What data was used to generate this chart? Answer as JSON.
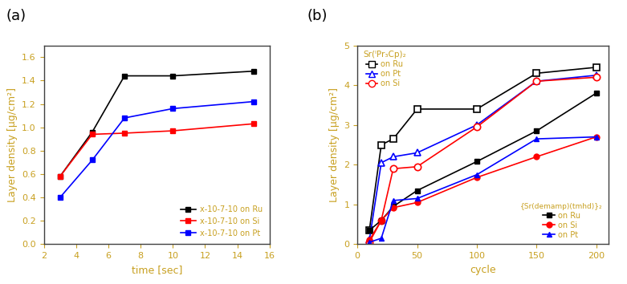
{
  "panel_a": {
    "title": "(a)",
    "xlabel": "time [sec]",
    "ylabel": "Layer density [μg/cm²]",
    "xlim": [
      2,
      16
    ],
    "ylim": [
      0.0,
      1.7
    ],
    "xticks": [
      2,
      4,
      6,
      8,
      10,
      12,
      14,
      16
    ],
    "yticks": [
      0.0,
      0.2,
      0.4,
      0.6,
      0.8,
      1.0,
      1.2,
      1.4,
      1.6
    ],
    "series": [
      {
        "label": "x-10-7-10 on Ru",
        "color": "#000000",
        "x": [
          3,
          5,
          7,
          10,
          15
        ],
        "y": [
          0.58,
          0.96,
          1.44,
          1.44,
          1.48
        ],
        "marker": "s",
        "filled": true
      },
      {
        "label": "x-10-7-10 on Si",
        "color": "#ff0000",
        "x": [
          3,
          5,
          7,
          10,
          15
        ],
        "y": [
          0.58,
          0.94,
          0.95,
          0.97,
          1.03
        ],
        "marker": "s",
        "filled": true
      },
      {
        "label": "x-10-7-10 on Pt",
        "color": "#0000ff",
        "x": [
          3,
          5,
          7,
          10,
          15
        ],
        "y": [
          0.4,
          0.72,
          1.08,
          1.16,
          1.22
        ],
        "marker": "s",
        "filled": true
      }
    ]
  },
  "panel_b": {
    "title": "(b)",
    "xlabel": "cycle",
    "ylabel": "Layer density [μg/cm²]",
    "xlim": [
      0,
      210
    ],
    "ylim": [
      0,
      5
    ],
    "xticks": [
      0,
      50,
      100,
      150,
      200
    ],
    "yticks": [
      0,
      1,
      2,
      3,
      4,
      5
    ],
    "series_open": [
      {
        "label": "on Ru",
        "color": "#000000",
        "x": [
          10,
          20,
          30,
          50,
          100,
          150,
          200
        ],
        "y": [
          0.35,
          2.5,
          2.65,
          3.4,
          3.4,
          4.3,
          4.45
        ],
        "marker": "s",
        "filled": false
      },
      {
        "label": "on Pt",
        "color": "#0000ff",
        "x": [
          10,
          20,
          30,
          50,
          100,
          150,
          200
        ],
        "y": [
          0.1,
          2.05,
          2.2,
          2.3,
          3.0,
          4.1,
          4.25
        ],
        "marker": "^",
        "filled": false
      },
      {
        "label": "on Si",
        "color": "#ff0000",
        "x": [
          10,
          20,
          30,
          50,
          100,
          150,
          200
        ],
        "y": [
          0.05,
          0.6,
          1.9,
          1.95,
          2.95,
          4.1,
          4.2
        ],
        "marker": "o",
        "filled": false
      }
    ],
    "series_filled": [
      {
        "label": "on Ru",
        "color": "#000000",
        "x": [
          10,
          20,
          30,
          50,
          100,
          150,
          200
        ],
        "y": [
          0.35,
          0.6,
          0.95,
          1.35,
          2.08,
          2.85,
          3.8
        ],
        "marker": "s",
        "filled": true
      },
      {
        "label": "on Si",
        "color": "#ff0000",
        "x": [
          10,
          20,
          30,
          50,
          100,
          150,
          200
        ],
        "y": [
          0.1,
          0.6,
          0.92,
          1.05,
          1.68,
          2.2,
          2.7
        ],
        "marker": "o",
        "filled": true
      },
      {
        "label": "on Pt",
        "color": "#0000ff",
        "x": [
          10,
          20,
          30,
          50,
          100,
          150,
          200
        ],
        "y": [
          0.05,
          0.15,
          1.1,
          1.15,
          1.75,
          2.65,
          2.7
        ],
        "marker": "^",
        "filled": true
      }
    ],
    "legend1_title": "Sr(ᴵPr₃Cp)₂",
    "legend2_title": "{Sr(demamp)(tmhd)}₂"
  },
  "fig_width": 7.81,
  "fig_height": 3.54,
  "label_color": "#c8a020",
  "axis_label_color": "#c8a020",
  "tick_color": "#c8a020",
  "spine_color": "#404040"
}
